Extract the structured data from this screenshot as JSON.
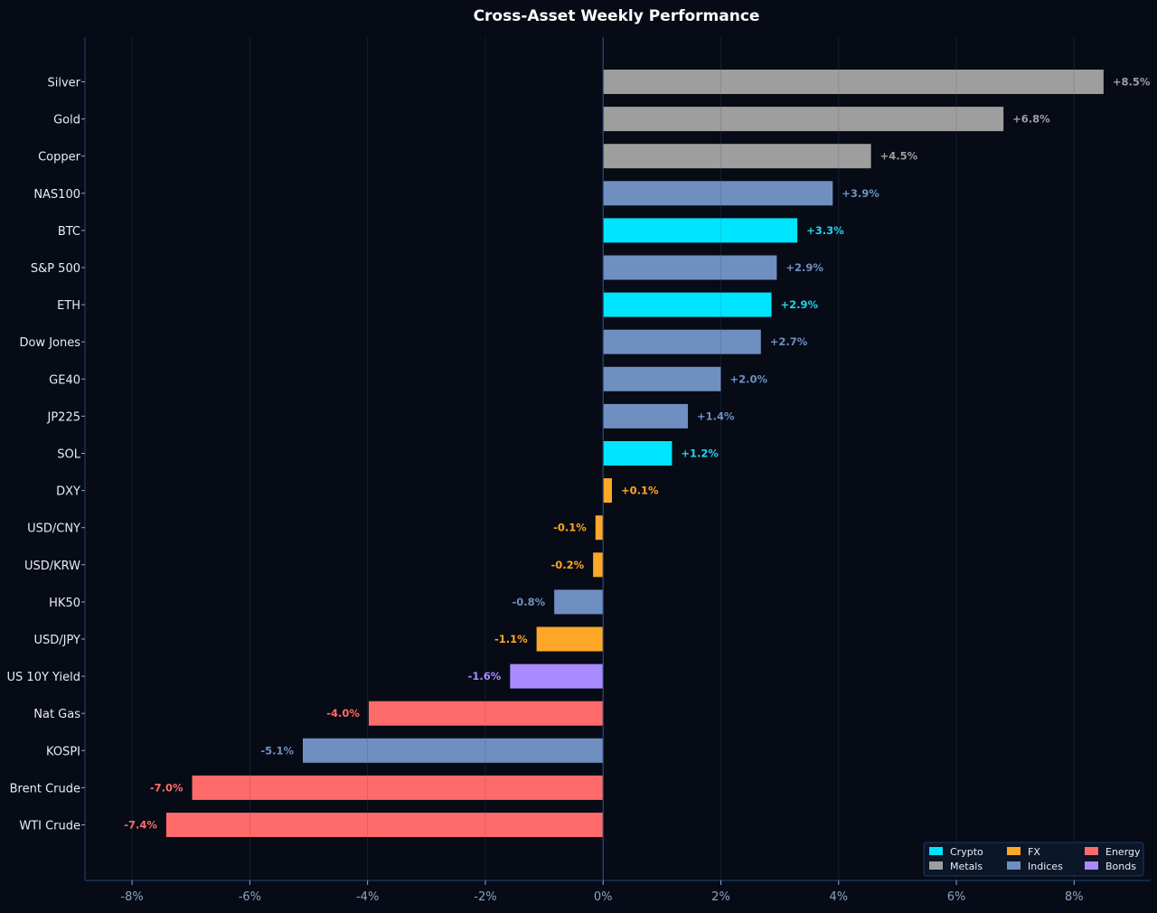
{
  "chart_data": {
    "type": "bar",
    "orientation": "horizontal",
    "title": "Cross-Asset Weekly Performance",
    "xlabel": "",
    "ylabel": "",
    "xlim": [
      -8.8,
      9.3
    ],
    "x_ticks": [
      -8,
      -6,
      -4,
      -2,
      0,
      2,
      4,
      6,
      8
    ],
    "x_tick_labels": [
      "-8%",
      "-6%",
      "-4%",
      "-2%",
      "0%",
      "2%",
      "4%",
      "6%",
      "8%"
    ],
    "grid": "vertical",
    "legend_position": "bottom-right",
    "categories": [
      "Silver",
      "Gold",
      "Copper",
      "NAS100",
      "BTC",
      "S&P 500",
      "ETH",
      "Dow Jones",
      "GE40",
      "JP225",
      "SOL",
      "DXY",
      "USD/CNY",
      "USD/KRW",
      "HK50",
      "USD/JPY",
      "US 10Y Yield",
      "Nat Gas",
      "KOSPI",
      "Brent Crude",
      "WTI Crude"
    ],
    "values": [
      8.5,
      6.8,
      4.55,
      3.9,
      3.3,
      2.95,
      2.86,
      2.68,
      2.0,
      1.44,
      1.17,
      0.15,
      -0.13,
      -0.17,
      -0.83,
      -1.13,
      -1.58,
      -3.98,
      -5.1,
      -6.98,
      -7.42
    ],
    "value_labels": [
      "+8.5%",
      "+6.8%",
      "+4.5%",
      "+3.9%",
      "+3.3%",
      "+2.9%",
      "+2.9%",
      "+2.7%",
      "+2.0%",
      "+1.4%",
      "+1.2%",
      "+0.1%",
      "-0.1%",
      "-0.2%",
      "-0.8%",
      "-1.1%",
      "-1.6%",
      "-4.0%",
      "-5.1%",
      "-7.0%",
      "-7.4%"
    ],
    "groups": [
      "Metals",
      "Metals",
      "Metals",
      "Indices",
      "Crypto",
      "Indices",
      "Crypto",
      "Indices",
      "Indices",
      "Indices",
      "Crypto",
      "FX",
      "FX",
      "FX",
      "Indices",
      "FX",
      "Bonds",
      "Energy",
      "Indices",
      "Energy",
      "Energy"
    ],
    "legend": [
      {
        "name": "Crypto",
        "color": "#00e5ff"
      },
      {
        "name": "Metals",
        "color": "#9e9e9e"
      },
      {
        "name": "FX",
        "color": "#ffa726"
      },
      {
        "name": "Indices",
        "color": "#6f8fc1"
      },
      {
        "name": "Energy",
        "color": "#ff6b6b"
      },
      {
        "name": "Bonds",
        "color": "#a98bff"
      }
    ],
    "label_colors": {
      "Crypto": "#22d3ee",
      "Metals": "#9e9e9e",
      "FX": "#ffa726",
      "Indices": "#6f8fc1",
      "Energy": "#ff6b6b",
      "Bonds": "#a98bff"
    },
    "colors": {
      "background": "#060b15",
      "axis": "#1f3a66",
      "grid": "#18243a",
      "tick_text": "#8fa3c4",
      "category_text": "#e8ecf4",
      "title_text": "#ffffff",
      "legend_bg": "#0b1628",
      "legend_border": "#1f3a66"
    }
  }
}
